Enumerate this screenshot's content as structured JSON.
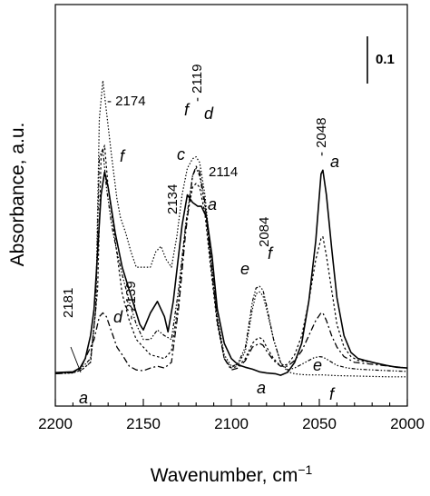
{
  "chart_data": {
    "type": "line",
    "title": "",
    "xlabel": "Wavenumber, cm",
    "xlabel_superscript": "−1",
    "ylabel": "Absorbance, a.u.",
    "xlim": [
      2200,
      2000
    ],
    "x_reversed": true,
    "x_ticks": [
      2200,
      2150,
      2100,
      2050,
      2000
    ],
    "y_ticks_shown": false,
    "grid": false,
    "legend": "none",
    "scale_bar": {
      "label": "0.1",
      "value": 0.1
    },
    "ylim": [
      0,
      1.0
    ],
    "series": [
      {
        "name": "a",
        "points": [
          [
            2200,
            0.033
          ],
          [
            2190,
            0.035
          ],
          [
            2186,
            0.045
          ],
          [
            2183,
            0.07
          ],
          [
            2180,
            0.13
          ],
          [
            2178,
            0.2
          ],
          [
            2176,
            0.35
          ],
          [
            2174,
            0.5
          ],
          [
            2172,
            0.56
          ],
          [
            2170,
            0.52
          ],
          [
            2166,
            0.4
          ],
          [
            2162,
            0.31
          ],
          [
            2158,
            0.25
          ],
          [
            2152,
            0.16
          ],
          [
            2150,
            0.145
          ],
          [
            2146,
            0.19
          ],
          [
            2142,
            0.22
          ],
          [
            2138,
            0.18
          ],
          [
            2136,
            0.14
          ],
          [
            2133,
            0.22
          ],
          [
            2128,
            0.42
          ],
          [
            2125,
            0.5
          ],
          [
            2122,
            0.48
          ],
          [
            2119,
            0.47
          ],
          [
            2117,
            0.47
          ],
          [
            2114,
            0.44
          ],
          [
            2111,
            0.34
          ],
          [
            2108,
            0.2
          ],
          [
            2104,
            0.11
          ],
          [
            2100,
            0.07
          ],
          [
            2096,
            0.053
          ],
          [
            2092,
            0.047
          ],
          [
            2088,
            0.042
          ],
          [
            2084,
            0.035
          ],
          [
            2080,
            0.032
          ],
          [
            2075,
            0.03
          ],
          [
            2072,
            0.026
          ],
          [
            2068,
            0.034
          ],
          [
            2064,
            0.06
          ],
          [
            2060,
            0.11
          ],
          [
            2056,
            0.22
          ],
          [
            2052,
            0.38
          ],
          [
            2049,
            0.555
          ],
          [
            2048,
            0.565
          ],
          [
            2046,
            0.5
          ],
          [
            2043,
            0.36
          ],
          [
            2040,
            0.23
          ],
          [
            2036,
            0.13
          ],
          [
            2032,
            0.086
          ],
          [
            2028,
            0.07
          ],
          [
            2024,
            0.065
          ],
          [
            2018,
            0.058
          ],
          [
            2012,
            0.052
          ],
          [
            2006,
            0.047
          ],
          [
            2000,
            0.045
          ]
        ]
      },
      {
        "name": "c",
        "points": [
          [
            2200,
            0.03
          ],
          [
            2190,
            0.033
          ],
          [
            2185,
            0.04
          ],
          [
            2180,
            0.06
          ],
          [
            2176,
            0.25
          ],
          [
            2174,
            0.6
          ],
          [
            2172,
            0.63
          ],
          [
            2170,
            0.52
          ],
          [
            2166,
            0.38
          ],
          [
            2162,
            0.24
          ],
          [
            2158,
            0.17
          ],
          [
            2154,
            0.12
          ],
          [
            2150,
            0.1
          ],
          [
            2146,
            0.08
          ],
          [
            2142,
            0.075
          ],
          [
            2138,
            0.07
          ],
          [
            2134,
            0.09
          ],
          [
            2130,
            0.22
          ],
          [
            2126,
            0.42
          ],
          [
            2122,
            0.52
          ],
          [
            2120,
            0.53
          ],
          [
            2118,
            0.52
          ],
          [
            2115,
            0.45
          ],
          [
            2112,
            0.32
          ],
          [
            2108,
            0.16
          ],
          [
            2104,
            0.07
          ],
          [
            2100,
            0.045
          ],
          [
            2096,
            0.05
          ],
          [
            2092,
            0.07
          ],
          [
            2088,
            0.11
          ],
          [
            2086,
            0.12
          ],
          [
            2084,
            0.125
          ],
          [
            2082,
            0.12
          ],
          [
            2080,
            0.1
          ],
          [
            2076,
            0.07
          ],
          [
            2072,
            0.05
          ],
          [
            2068,
            0.055
          ],
          [
            2064,
            0.08
          ],
          [
            2060,
            0.13
          ],
          [
            2056,
            0.22
          ],
          [
            2052,
            0.33
          ],
          [
            2049,
            0.385
          ],
          [
            2048,
            0.39
          ],
          [
            2046,
            0.34
          ],
          [
            2043,
            0.25
          ],
          [
            2040,
            0.16
          ],
          [
            2036,
            0.1
          ],
          [
            2032,
            0.075
          ],
          [
            2028,
            0.065
          ],
          [
            2020,
            0.06
          ],
          [
            2010,
            0.05
          ],
          [
            2000,
            0.045
          ]
        ]
      },
      {
        "name": "d",
        "points": [
          [
            2200,
            0.03
          ],
          [
            2190,
            0.033
          ],
          [
            2185,
            0.05
          ],
          [
            2182,
            0.08
          ],
          [
            2178,
            0.12
          ],
          [
            2175,
            0.18
          ],
          [
            2173,
            0.19
          ],
          [
            2171,
            0.18
          ],
          [
            2168,
            0.14
          ],
          [
            2165,
            0.1
          ],
          [
            2162,
            0.08
          ],
          [
            2158,
            0.05
          ],
          [
            2154,
            0.04
          ],
          [
            2150,
            0.038
          ],
          [
            2146,
            0.045
          ],
          [
            2142,
            0.05
          ],
          [
            2138,
            0.045
          ],
          [
            2134,
            0.06
          ],
          [
            2130,
            0.2
          ],
          [
            2126,
            0.4
          ],
          [
            2122,
            0.55
          ],
          [
            2120,
            0.575
          ],
          [
            2118,
            0.56
          ],
          [
            2115,
            0.48
          ],
          [
            2112,
            0.34
          ],
          [
            2108,
            0.17
          ],
          [
            2104,
            0.07
          ],
          [
            2100,
            0.04
          ],
          [
            2096,
            0.045
          ],
          [
            2092,
            0.065
          ],
          [
            2088,
            0.1
          ],
          [
            2086,
            0.105
          ],
          [
            2084,
            0.11
          ],
          [
            2082,
            0.105
          ],
          [
            2080,
            0.09
          ],
          [
            2076,
            0.065
          ],
          [
            2072,
            0.05
          ],
          [
            2068,
            0.05
          ],
          [
            2064,
            0.065
          ],
          [
            2060,
            0.09
          ],
          [
            2056,
            0.13
          ],
          [
            2052,
            0.17
          ],
          [
            2049,
            0.19
          ],
          [
            2048,
            0.19
          ],
          [
            2046,
            0.17
          ],
          [
            2043,
            0.13
          ],
          [
            2040,
            0.1
          ],
          [
            2036,
            0.075
          ],
          [
            2030,
            0.06
          ],
          [
            2020,
            0.055
          ],
          [
            2010,
            0.05
          ],
          [
            2000,
            0.045
          ]
        ]
      },
      {
        "name": "e",
        "points": [
          [
            2200,
            0.03
          ],
          [
            2190,
            0.033
          ],
          [
            2185,
            0.045
          ],
          [
            2180,
            0.07
          ],
          [
            2177,
            0.2
          ],
          [
            2175,
            0.6
          ],
          [
            2173,
            0.62
          ],
          [
            2171,
            0.52
          ],
          [
            2168,
            0.42
          ],
          [
            2165,
            0.35
          ],
          [
            2162,
            0.29
          ],
          [
            2158,
            0.22
          ],
          [
            2154,
            0.16
          ],
          [
            2150,
            0.12
          ],
          [
            2146,
            0.12
          ],
          [
            2142,
            0.145
          ],
          [
            2138,
            0.13
          ],
          [
            2134,
            0.12
          ],
          [
            2130,
            0.25
          ],
          [
            2126,
            0.42
          ],
          [
            2122,
            0.55
          ],
          [
            2120,
            0.57
          ],
          [
            2118,
            0.55
          ],
          [
            2115,
            0.47
          ],
          [
            2112,
            0.34
          ],
          [
            2108,
            0.17
          ],
          [
            2104,
            0.07
          ],
          [
            2100,
            0.045
          ],
          [
            2096,
            0.06
          ],
          [
            2092,
            0.1
          ],
          [
            2088,
            0.22
          ],
          [
            2086,
            0.255
          ],
          [
            2084,
            0.26
          ],
          [
            2082,
            0.25
          ],
          [
            2080,
            0.21
          ],
          [
            2076,
            0.12
          ],
          [
            2072,
            0.06
          ],
          [
            2068,
            0.04
          ],
          [
            2064,
            0.045
          ],
          [
            2060,
            0.055
          ],
          [
            2056,
            0.065
          ],
          [
            2053,
            0.072
          ],
          [
            2050,
            0.075
          ],
          [
            2048,
            0.074
          ],
          [
            2045,
            0.066
          ],
          [
            2040,
            0.052
          ],
          [
            2034,
            0.045
          ],
          [
            2028,
            0.042
          ],
          [
            2020,
            0.04
          ],
          [
            2010,
            0.038
          ],
          [
            2000,
            0.036
          ]
        ]
      },
      {
        "name": "f",
        "points": [
          [
            2200,
            0.03
          ],
          [
            2190,
            0.032
          ],
          [
            2185,
            0.04
          ],
          [
            2180,
            0.06
          ],
          [
            2177,
            0.2
          ],
          [
            2175,
            0.7
          ],
          [
            2173,
            0.8
          ],
          [
            2171,
            0.72
          ],
          [
            2168,
            0.6
          ],
          [
            2165,
            0.49
          ],
          [
            2163,
            0.44
          ],
          [
            2160,
            0.4
          ],
          [
            2157,
            0.35
          ],
          [
            2154,
            0.31
          ],
          [
            2150,
            0.31
          ],
          [
            2146,
            0.31
          ],
          [
            2143,
            0.35
          ],
          [
            2140,
            0.365
          ],
          [
            2137,
            0.33
          ],
          [
            2134,
            0.31
          ],
          [
            2131,
            0.39
          ],
          [
            2128,
            0.5
          ],
          [
            2125,
            0.57
          ],
          [
            2122,
            0.595
          ],
          [
            2120,
            0.6
          ],
          [
            2118,
            0.585
          ],
          [
            2115,
            0.5
          ],
          [
            2112,
            0.36
          ],
          [
            2108,
            0.18
          ],
          [
            2104,
            0.08
          ],
          [
            2100,
            0.05
          ],
          [
            2096,
            0.055
          ],
          [
            2092,
            0.09
          ],
          [
            2088,
            0.2
          ],
          [
            2086,
            0.24
          ],
          [
            2084,
            0.245
          ],
          [
            2082,
            0.235
          ],
          [
            2080,
            0.2
          ],
          [
            2076,
            0.12
          ],
          [
            2072,
            0.06
          ],
          [
            2068,
            0.035
          ],
          [
            2064,
            0.03
          ],
          [
            2060,
            0.028
          ],
          [
            2056,
            0.027
          ],
          [
            2052,
            0.027
          ],
          [
            2048,
            0.027
          ],
          [
            2044,
            0.026
          ],
          [
            2040,
            0.025
          ],
          [
            2030,
            0.024
          ],
          [
            2020,
            0.023
          ],
          [
            2010,
            0.022
          ],
          [
            2000,
            0.022
          ]
        ]
      }
    ],
    "annotations": [
      {
        "text": "- 2174",
        "x": 2174
      },
      {
        "text": "- 2119",
        "x": 2119
      },
      {
        "text": "2114",
        "x": 2114
      },
      {
        "text": "2134",
        "x": 2134
      },
      {
        "text": "- 2139",
        "x": 2139
      },
      {
        "text": "2181",
        "x": 2181
      },
      {
        "text": "2084",
        "x": 2084
      },
      {
        "text": "- 2048",
        "x": 2048
      }
    ],
    "curve_letters": [
      {
        "letter": "f",
        "x": 2168
      },
      {
        "letter": "f",
        "x": 2121
      },
      {
        "letter": "d",
        "x": 2116
      },
      {
        "letter": "c",
        "x": 2125
      },
      {
        "letter": "a",
        "x": 2115
      },
      {
        "letter": "d",
        "x": 2166
      },
      {
        "letter": "e",
        "x": 2088
      },
      {
        "letter": "f",
        "x": 2080
      },
      {
        "letter": "a",
        "x": 2043
      },
      {
        "letter": "a",
        "x": 2190
      },
      {
        "letter": "a",
        "x": 2091
      },
      {
        "letter": "e",
        "x": 2050
      },
      {
        "letter": "f",
        "x": 2046
      }
    ]
  }
}
